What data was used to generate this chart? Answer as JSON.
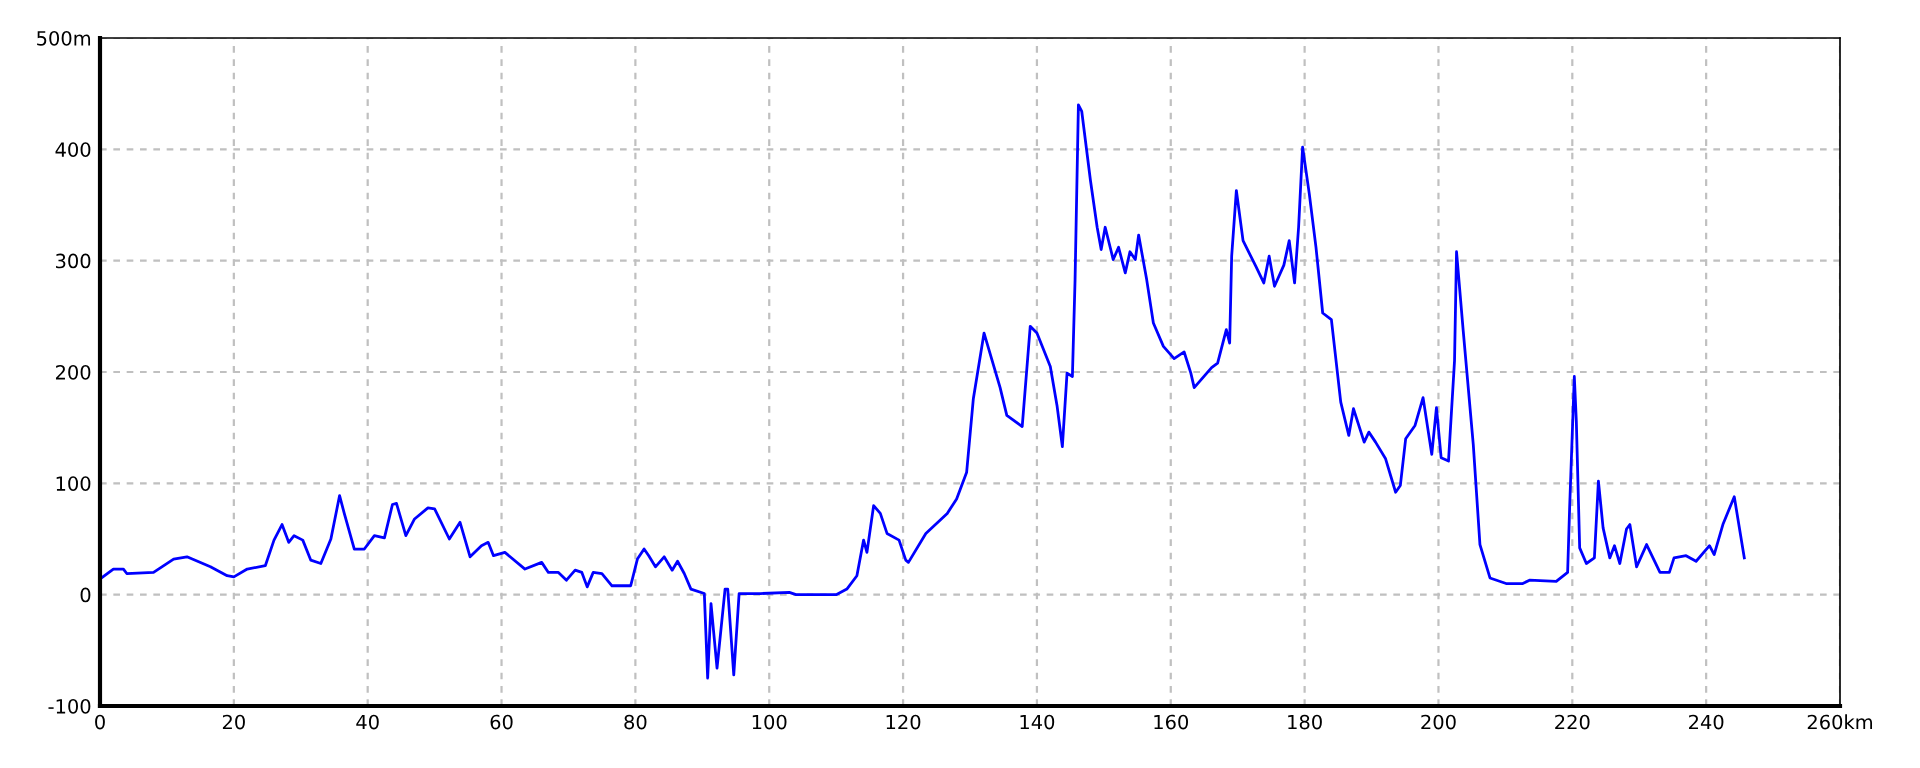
{
  "chart_data": {
    "type": "line",
    "grid": true,
    "line_style": "solid",
    "marker": "none",
    "xlim": [
      0,
      260
    ],
    "xticks": [
      0,
      20,
      40,
      60,
      80,
      100,
      120,
      140,
      160,
      180,
      200,
      220,
      240,
      {
        "value": 260,
        "label": "260km"
      }
    ],
    "ylim": [
      -100,
      500
    ],
    "yticks": [
      -100,
      0,
      100,
      200,
      300,
      400,
      {
        "value": 500,
        "label": "500m"
      }
    ],
    "series": [
      {
        "color": "#0000ff",
        "x": [
          0,
          2,
          3.5,
          4,
          8,
          11,
          13,
          16.5,
          19,
          20,
          22,
          24.7,
          26,
          27.2,
          28.2,
          29,
          30.3,
          31.5,
          33,
          34.5,
          35.8,
          36.5,
          38,
          39.5,
          41,
          42.5,
          43.7,
          44.3,
          45.7,
          47,
          49,
          50,
          52.2,
          53.8,
          55.3,
          57,
          58,
          58.8,
          60.5,
          63.5,
          66,
          67,
          68.5,
          69.7,
          71,
          72,
          72.8,
          73.7,
          75,
          76.5,
          79.3,
          80.3,
          81.3,
          82,
          83,
          84.3,
          85.5,
          86.3,
          87.3,
          88.3,
          90.3,
          90.8,
          91.3,
          92.2,
          93.4,
          93.8,
          94.7,
          95.5,
          98.7,
          103,
          104,
          110,
          111.6,
          113.1,
          114.1,
          114.6,
          115.6,
          116.6,
          117.6,
          119.4,
          120.4,
          120.8,
          123.4,
          126.6,
          128,
          129.5,
          130.5,
          132.1,
          134.5,
          135.5,
          137.8,
          139,
          140,
          142,
          143,
          143.8,
          144.5,
          145.3,
          145.7,
          146.2,
          146.7,
          148,
          149,
          149.6,
          150.2,
          151.4,
          152.2,
          153.2,
          153.9,
          154.7,
          155.2,
          156.4,
          157.4,
          158.9,
          160.5,
          162,
          163,
          163.5,
          166.1,
          167,
          168.3,
          168.8,
          169.1,
          169.8,
          170.8,
          172.7,
          173.9,
          174.7,
          175.5,
          176.9,
          177.7,
          178.5,
          179.1,
          179.7,
          180.7,
          181.7,
          182.7,
          184,
          185.4,
          186.6,
          187.3,
          188.9,
          189.6,
          190.6,
          192.1,
          193.6,
          194.3,
          195.1,
          196.5,
          197.7,
          199,
          199.7,
          200.4,
          201.5,
          202.4,
          202.7,
          203.7,
          205.2,
          206.2,
          207.7,
          210.1,
          212.6,
          213.6,
          217.6,
          219.3,
          219.6,
          220.3,
          220.6,
          221.1,
          222.1,
          223.3,
          223.9,
          224.6,
          225.6,
          226.3,
          227.1,
          228.1,
          228.6,
          229.6,
          231.1,
          233.1,
          234.5,
          235.2,
          237,
          238.5,
          240.5,
          241.2,
          242.5,
          244.2,
          245.7
        ],
        "values": [
          14,
          23,
          23,
          19,
          20,
          32,
          34,
          25,
          17,
          16,
          23,
          26,
          49,
          63,
          47,
          53,
          49,
          31,
          28,
          50,
          89,
          73,
          41,
          41,
          53,
          51,
          81,
          82,
          53,
          68,
          78,
          77,
          50,
          65,
          34,
          44,
          47,
          35,
          38,
          23,
          29,
          20,
          20,
          13,
          22,
          20,
          7,
          20,
          19,
          8,
          8,
          32,
          41,
          35,
          25,
          34,
          22,
          30,
          19,
          5,
          1,
          -75,
          -8,
          -66,
          5,
          5,
          -72,
          1,
          1,
          2,
          0,
          0,
          5,
          17,
          49,
          38,
          80,
          73,
          55,
          49,
          31,
          29,
          55,
          73,
          86,
          110,
          176,
          235,
          186,
          161,
          151,
          241,
          235,
          205,
          170,
          133,
          199,
          196,
          283,
          440,
          434,
          372,
          330,
          310,
          330,
          301,
          312,
          289,
          308,
          301,
          323,
          283,
          244,
          223,
          212,
          218,
          199,
          186,
          204,
          208,
          238,
          226,
          304,
          363,
          318,
          295,
          280,
          304,
          277,
          296,
          318,
          280,
          330,
          402,
          360,
          312,
          253,
          247,
          173,
          143,
          167,
          137,
          146,
          137,
          122,
          92,
          98,
          140,
          152,
          177,
          126,
          168,
          123,
          120,
          210,
          308,
          237,
          135,
          45,
          15,
          10,
          10,
          13,
          12,
          20,
          78,
          196,
          156,
          42,
          28,
          33,
          102,
          60,
          33,
          44,
          28,
          59,
          63,
          25,
          45,
          20,
          20,
          33,
          35,
          30,
          44,
          36,
          63,
          88,
          33
        ]
      }
    ]
  }
}
